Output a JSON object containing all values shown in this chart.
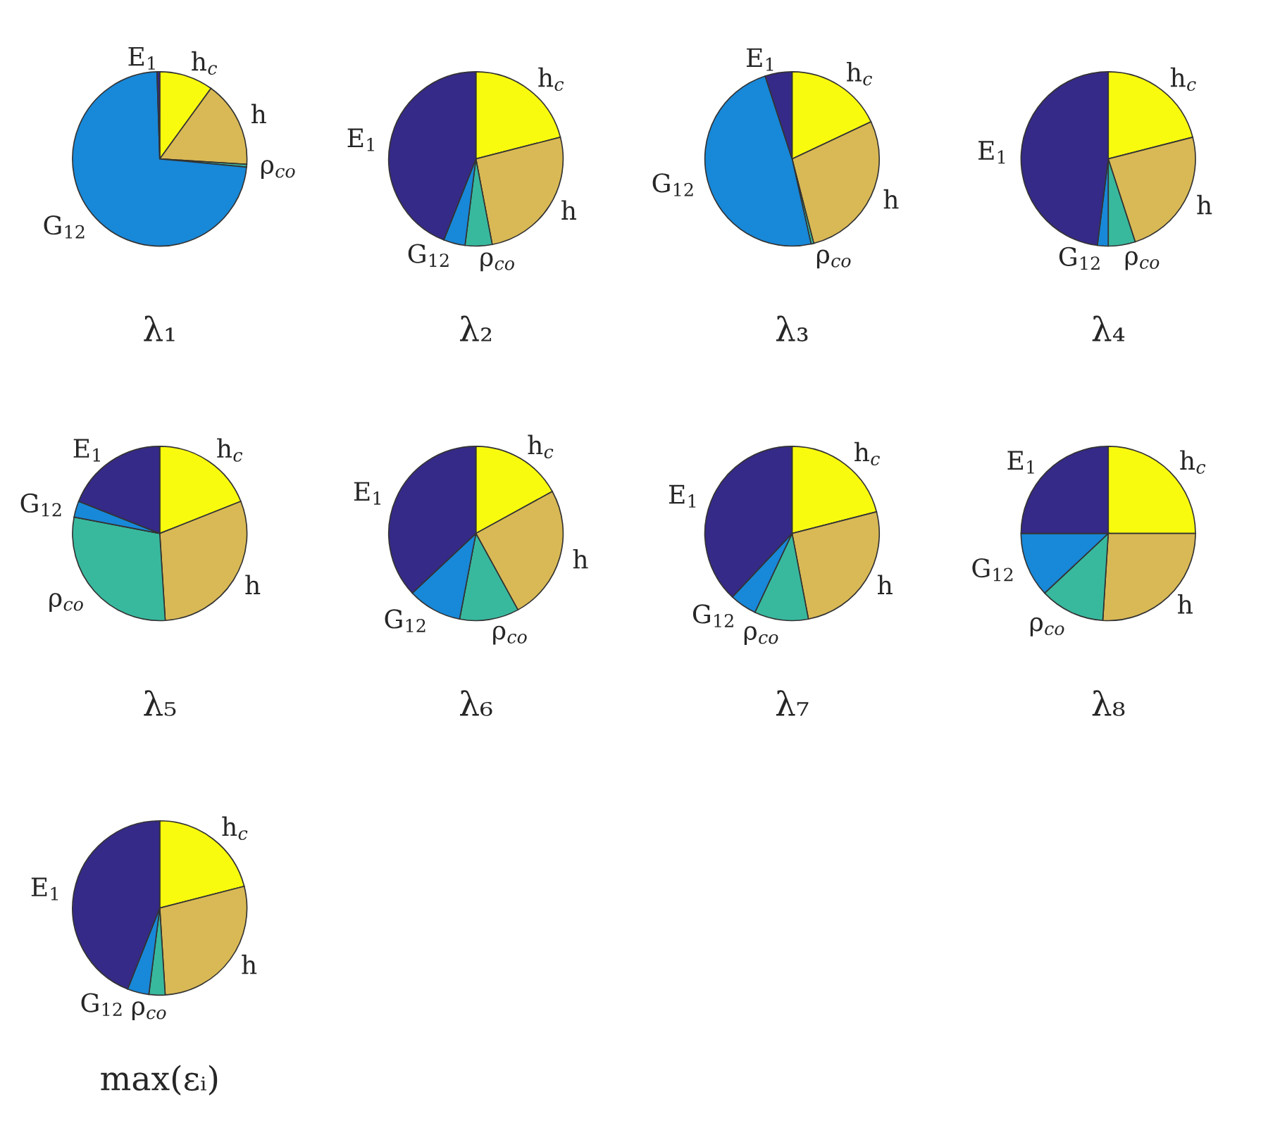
{
  "chart_data": [
    {
      "type": "pie",
      "title": "λ₁",
      "categories": [
        "h$_{c}$",
        "h",
        "ρ$_{co}$",
        "G$_{12}$",
        "E$_{1}$"
      ],
      "values": [
        10,
        16,
        0.5,
        73,
        0.5
      ],
      "colors": [
        "#f9fb0e",
        "#d9b955",
        "#38b99e",
        "#1888d8",
        "#352a87"
      ]
    },
    {
      "type": "pie",
      "title": "λ₂",
      "categories": [
        "h$_{c}$",
        "h",
        "ρ$_{co}$",
        "G$_{12}$",
        "E$_{1}$"
      ],
      "values": [
        21,
        26,
        5,
        4,
        44
      ],
      "colors": [
        "#f9fb0e",
        "#d9b955",
        "#38b99e",
        "#1888d8",
        "#352a87"
      ]
    },
    {
      "type": "pie",
      "title": "λ₃",
      "categories": [
        "h$_{c}$",
        "h",
        "ρ$_{co}$",
        "G$_{12}$",
        "E$_{1}$"
      ],
      "values": [
        18,
        28,
        0.5,
        48.5,
        5
      ],
      "colors": [
        "#f9fb0e",
        "#d9b955",
        "#38b99e",
        "#1888d8",
        "#352a87"
      ]
    },
    {
      "type": "pie",
      "title": "λ₄",
      "categories": [
        "h$_{c}$",
        "h",
        "ρ$_{co}$",
        "G$_{12}$",
        "E$_{1}$"
      ],
      "values": [
        21,
        24,
        5,
        2,
        48
      ],
      "colors": [
        "#f9fb0e",
        "#d9b955",
        "#38b99e",
        "#1888d8",
        "#352a87"
      ]
    },
    {
      "type": "pie",
      "title": "λ₅",
      "categories": [
        "h$_{c}$",
        "h",
        "ρ$_{co}$",
        "G$_{12}$",
        "E$_{1}$"
      ],
      "values": [
        19,
        30,
        29,
        3,
        19
      ],
      "colors": [
        "#f9fb0e",
        "#d9b955",
        "#38b99e",
        "#1888d8",
        "#352a87"
      ]
    },
    {
      "type": "pie",
      "title": "λ₆",
      "categories": [
        "h$_{c}$",
        "h",
        "ρ$_{co}$",
        "G$_{12}$",
        "E$_{1}$"
      ],
      "values": [
        17,
        25,
        11,
        10,
        37
      ],
      "colors": [
        "#f9fb0e",
        "#d9b955",
        "#38b99e",
        "#1888d8",
        "#352a87"
      ]
    },
    {
      "type": "pie",
      "title": "λ₇",
      "categories": [
        "h$_{c}$",
        "h",
        "ρ$_{co}$",
        "G$_{12}$",
        "E$_{1}$"
      ],
      "values": [
        21,
        26,
        10,
        5,
        38
      ],
      "colors": [
        "#f9fb0e",
        "#d9b955",
        "#38b99e",
        "#1888d8",
        "#352a87"
      ]
    },
    {
      "type": "pie",
      "title": "λ₈",
      "categories": [
        "h$_{c}$",
        "h",
        "ρ$_{co}$",
        "G$_{12}$",
        "E$_{1}$"
      ],
      "values": [
        25,
        26,
        12,
        12,
        25
      ],
      "colors": [
        "#f9fb0e",
        "#d9b955",
        "#38b99e",
        "#1888d8",
        "#352a87"
      ]
    },
    {
      "type": "pie",
      "title": "max(εᵢ)",
      "categories": [
        "h$_{c}$",
        "h",
        "ρ$_{co}$",
        "G$_{12}$",
        "E$_{1}$"
      ],
      "values": [
        21,
        28,
        3,
        4,
        44
      ],
      "colors": [
        "#f9fb0e",
        "#d9b955",
        "#38b99e",
        "#1888d8",
        "#352a87"
      ]
    }
  ]
}
